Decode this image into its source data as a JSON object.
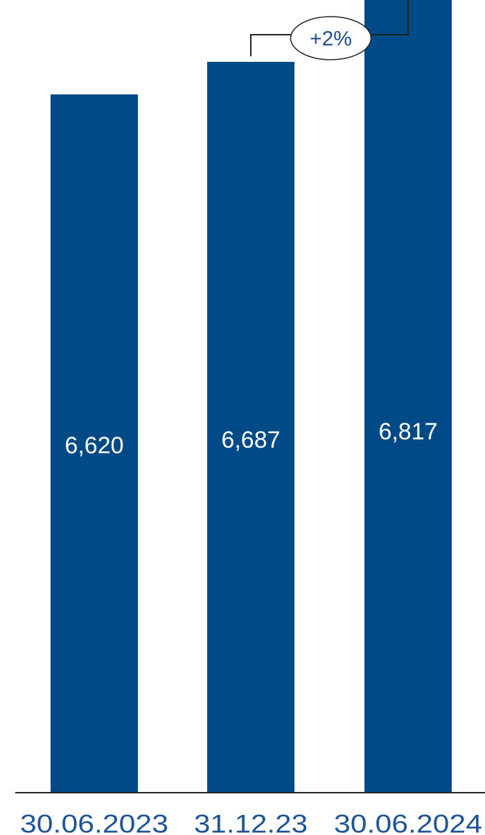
{
  "chart_data": {
    "type": "bar",
    "categories": [
      "30.06.2023",
      "31.12.23",
      "30.06.2024"
    ],
    "values": [
      6620,
      6687,
      6817
    ],
    "value_labels": [
      "6,620",
      "6,687",
      "6,817"
    ],
    "title": "",
    "xlabel": "",
    "ylabel": "",
    "grid": false,
    "legend": "none",
    "annotation": {
      "text": "+2%",
      "from_category": "31.12.23",
      "to_category": "30.06.2024"
    },
    "colors": {
      "bar": "#004b87",
      "tick_label": "#1f5596",
      "bar_label": "#ffffff",
      "axis": "#222222",
      "annotation_line": "#222222"
    }
  }
}
